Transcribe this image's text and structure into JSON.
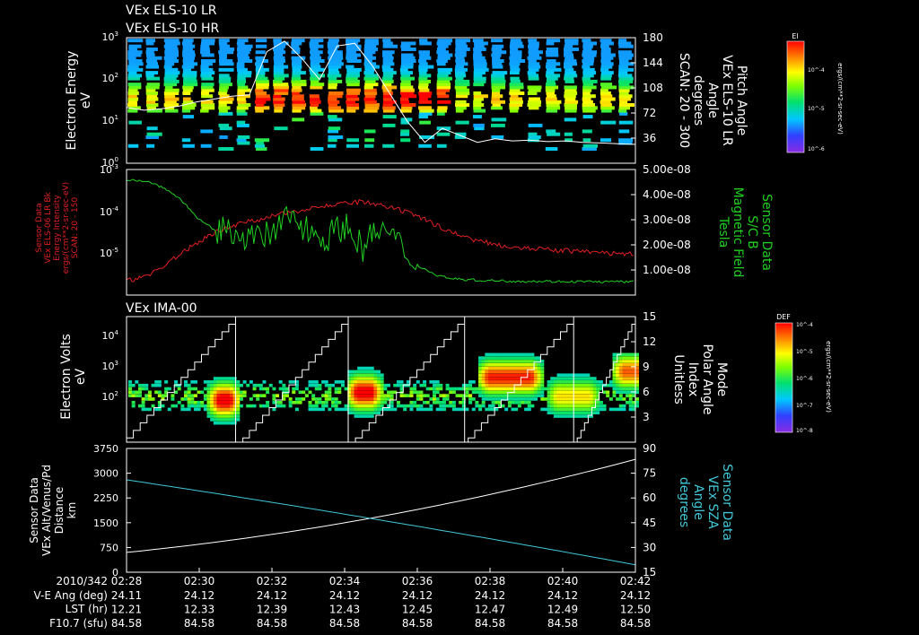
{
  "chart_data": [
    {
      "type": "heatmap",
      "panel": "els",
      "titles": [
        "VEx ELS-10 LR",
        "VEx ELS-10 HR"
      ],
      "ylabel": [
        "Electron Energy",
        "eV"
      ],
      "y_ticks": [
        "10^0",
        "10^1",
        "10^2",
        "10^3"
      ],
      "y_ticks_display": [
        {
          "base": "10",
          "exp": "0"
        },
        {
          "base": "10",
          "exp": "1"
        },
        {
          "base": "10",
          "exp": "2"
        },
        {
          "base": "10",
          "exp": "3"
        }
      ],
      "ylim_log": [
        0,
        3
      ],
      "right_ticks": [
        "36",
        "72",
        "108",
        "144",
        "180"
      ],
      "right_range": [
        0,
        180
      ],
      "right_label": [
        "Pitch Angle",
        "VEx ELS-10 LR",
        "Angle",
        "degrees",
        "SCAN: 20 - 300"
      ],
      "colorbar": {
        "title": "El",
        "ticks": [
          "10^-4",
          "10^-5",
          "10^-6"
        ],
        "unit": "ergs/(cm**2-sr-sec-eV)"
      },
      "pitch_angle_trace": [
        80,
        76,
        78,
        82,
        88,
        92,
        96,
        98,
        160,
        175,
        150,
        120,
        168,
        172,
        140,
        100,
        60,
        30,
        50,
        40,
        30,
        35,
        32,
        33,
        31,
        32,
        30,
        29,
        28,
        27
      ]
    },
    {
      "type": "line",
      "panel": "energy",
      "left_label": [
        "Sensor Data",
        "VEx ELS-06 LR Bk",
        "Energy Intensity",
        "ergs/(cm**2-sr-sec-eV)",
        "SCAN: 20 - 150"
      ],
      "left_ticks": [
        "10^-5",
        "10^-4",
        "10^-3"
      ],
      "left_ticks_display": [
        {
          "base": "10",
          "exp": "-5"
        },
        {
          "base": "10",
          "exp": "-4"
        },
        {
          "base": "10",
          "exp": "-3"
        }
      ],
      "right_ticks": [
        "1.00e-08",
        "2.00e-08",
        "3.00e-08",
        "4.00e-08",
        "5.00e-08"
      ],
      "right_range": [
        0,
        5e-08
      ],
      "right_label": [
        "Sensor Data",
        "S/C B",
        "Magnetic Field",
        "Tesla"
      ],
      "series": [
        {
          "name": "Energy Intensity",
          "color": "#e02020",
          "log_values": [
            -5.65,
            -5.55,
            -5.3,
            -5.0,
            -4.7,
            -4.45,
            -4.3,
            -4.2,
            -4.1,
            -4.0,
            -3.9,
            -3.85,
            -3.8,
            -3.75,
            -3.85,
            -3.95,
            -4.1,
            -4.3,
            -4.5,
            -4.65,
            -4.75,
            -4.82,
            -4.86,
            -4.9,
            -4.92,
            -4.95,
            -4.97,
            -5.0,
            -5.0
          ]
        },
        {
          "name": "Magnetic Field",
          "color": "#20d020",
          "values": [
            4.6e-08,
            4.55e-08,
            4.3e-08,
            3.8e-08,
            3e-08,
            2.5e-08,
            2.6e-08,
            2.2e-08,
            2.4e-08,
            3.2e-08,
            2.6e-08,
            2.3e-08,
            2.8e-08,
            1.9e-08,
            2.7e-08,
            2e-08,
            1.2e-08,
            8e-09,
            6.5e-09,
            6e-09,
            5.8e-09,
            5.6e-09,
            5.5e-09,
            5.5e-09,
            5.4e-09,
            5.4e-09,
            5.3e-09,
            5.3e-09,
            5.3e-09
          ]
        }
      ]
    },
    {
      "type": "heatmap",
      "panel": "ima",
      "title": "VEx IMA-00",
      "ylabel": [
        "Electron Volts",
        "eV"
      ],
      "y_ticks": [
        "10^2",
        "10^3",
        "10^4"
      ],
      "y_ticks_display": [
        {
          "base": "10",
          "exp": "2"
        },
        {
          "base": "10",
          "exp": "3"
        },
        {
          "base": "10",
          "exp": "4"
        }
      ],
      "ylim_log": [
        1.3,
        4.6
      ],
      "right_ticks": [
        "3",
        "6",
        "9",
        "12",
        "15"
      ],
      "right_range": [
        0,
        15
      ],
      "right_label": [
        "Mode",
        "Polar Angle",
        "Index",
        "Unitless"
      ],
      "colorbar": {
        "title": "DEF",
        "ticks": [
          "10^-4",
          "10^-5",
          "10^-6",
          "10^-7",
          "10^-8"
        ],
        "unit": "ergs/(cm**2-sr-sec-eV)"
      },
      "blobs": [
        {
          "t0": 2.2,
          "t1": 3.1,
          "e": 2.4,
          "int": 1.0
        },
        {
          "t0": 6.0,
          "t1": 7.0,
          "e": 2.6,
          "int": 1.0
        },
        {
          "t0": 9.6,
          "t1": 11.4,
          "e": 3.0,
          "int": 0.9
        },
        {
          "t0": 11.5,
          "t1": 13.0,
          "e": 2.5,
          "int": 0.6
        },
        {
          "t0": 13.3,
          "t1": 14.3,
          "e": 3.15,
          "int": 0.8
        }
      ]
    },
    {
      "type": "line",
      "panel": "alt",
      "left_label": [
        "Sensor Data",
        "VEx Alt/Venus/Pd",
        "Distance",
        "km"
      ],
      "left_ticks": [
        "0",
        "750",
        "1500",
        "2250",
        "3000",
        "3750"
      ],
      "left_range": [
        0,
        3750
      ],
      "right_ticks": [
        "15",
        "30",
        "45",
        "60",
        "75",
        "90"
      ],
      "right_range": [
        15,
        90
      ],
      "right_label": [
        "Sensor Data",
        "VEx SZA",
        "Angle",
        "degrees"
      ],
      "series": [
        {
          "name": "Altitude",
          "color": "#ffffff",
          "axis": "left",
          "start": 600,
          "end": 3420
        },
        {
          "name": "SZA",
          "color": "#40c8d8",
          "axis": "right",
          "start": 71,
          "end": 19.5
        }
      ]
    }
  ],
  "time_axis": {
    "date_label": "2010/342",
    "ticks": [
      "02:28",
      "02:30",
      "02:32",
      "02:34",
      "02:36",
      "02:38",
      "02:40",
      "02:42"
    ],
    "rows": [
      {
        "label": "V-E Ang (deg)",
        "values": [
          "24.11",
          "24.12",
          "24.12",
          "24.12",
          "24.12",
          "24.12",
          "24.12",
          "24.12"
        ]
      },
      {
        "label": "LST (hr)",
        "values": [
          "12.21",
          "12.33",
          "12.39",
          "12.43",
          "12.45",
          "12.47",
          "12.49",
          "12.50"
        ]
      },
      {
        "label": "F10.7 (sfu)",
        "values": [
          "84.58",
          "84.58",
          "84.58",
          "84.58",
          "84.58",
          "84.58",
          "84.58",
          "84.58"
        ]
      }
    ]
  }
}
